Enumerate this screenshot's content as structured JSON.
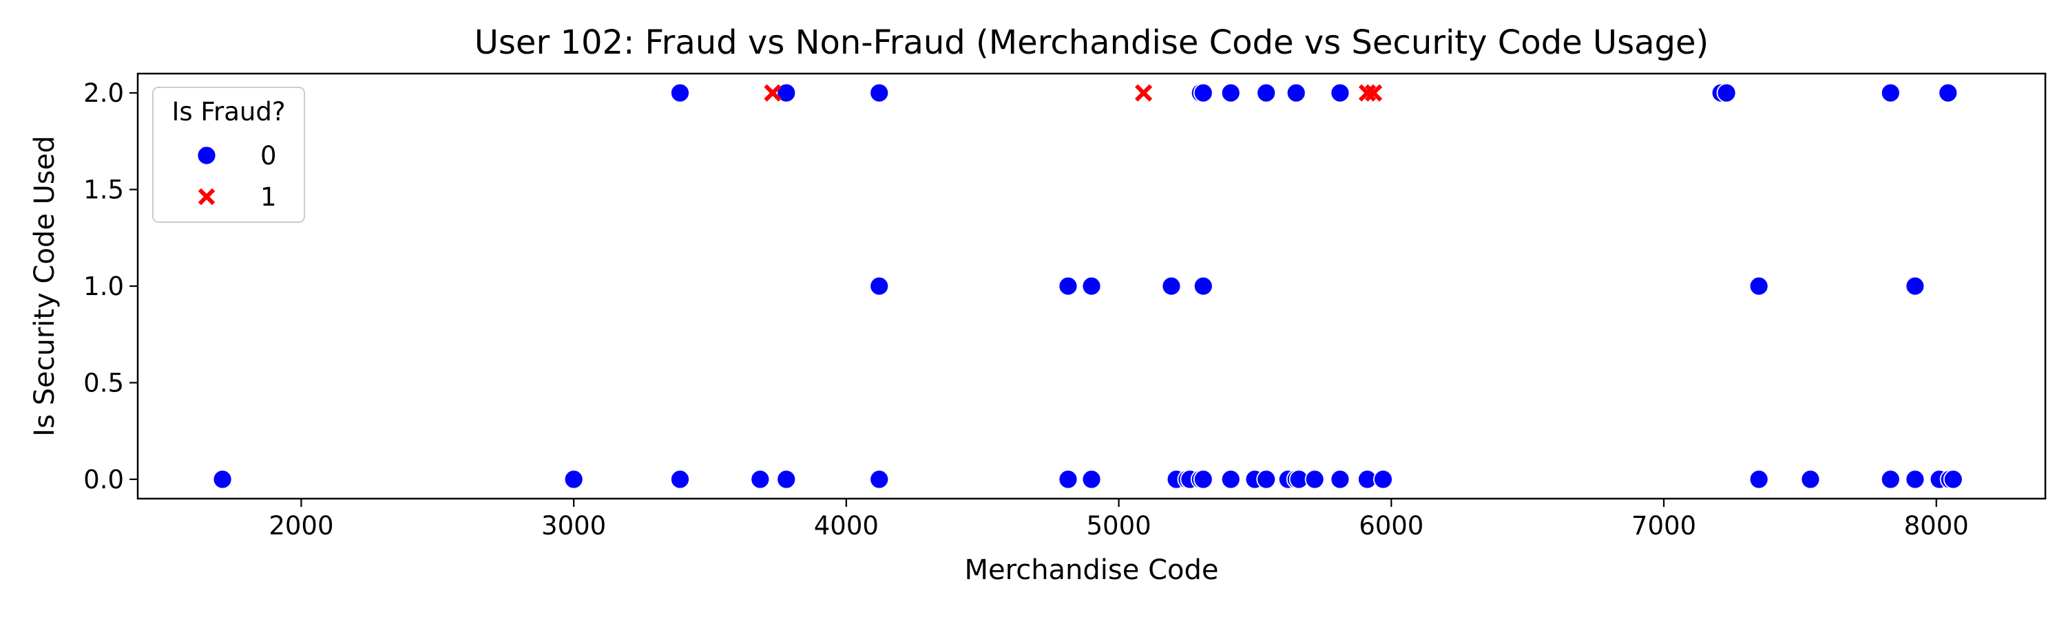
{
  "colors": {
    "non_fraud": "#0000ff",
    "fraud": "#ff0000",
    "axes": "#000000",
    "legend_border": "#cccccc",
    "background": "#ffffff"
  },
  "chart_data": {
    "type": "scatter",
    "title": "User 102: Fraud vs Non-Fraud (Merchandise Code vs Security Code Usage)",
    "xlabel": "Merchandise Code",
    "ylabel": "Is Security Code Used",
    "xlim": [
      1400,
      8400
    ],
    "ylim": [
      -0.1,
      2.1
    ],
    "xticks": [
      2000,
      3000,
      4000,
      5000,
      6000,
      7000,
      8000
    ],
    "xtick_labels": [
      "2000",
      "3000",
      "4000",
      "5000",
      "6000",
      "7000",
      "8000"
    ],
    "yticks": [
      0.0,
      0.5,
      1.0,
      1.5,
      2.0
    ],
    "ytick_labels": [
      "0.0",
      "0.5",
      "1.0",
      "1.5",
      "2.0"
    ],
    "grid": false,
    "legend": {
      "title": "Is Fraud?",
      "placement": "top-left",
      "entries": [
        {
          "label": "0",
          "marker": "circle",
          "color": "#0000ff"
        },
        {
          "label": "1",
          "marker": "x",
          "color": "#ff0000"
        }
      ]
    },
    "series": [
      {
        "name": "0",
        "marker": "circle",
        "color": "#0000ff",
        "points": [
          [
            1711,
            0
          ],
          [
            3000,
            0
          ],
          [
            3390,
            0
          ],
          [
            3684,
            0
          ],
          [
            3780,
            0
          ],
          [
            4121,
            0
          ],
          [
            4814,
            0
          ],
          [
            4900,
            0
          ],
          [
            5211,
            0
          ],
          [
            5251,
            0
          ],
          [
            5261,
            0
          ],
          [
            5300,
            0
          ],
          [
            5310,
            0
          ],
          [
            5411,
            0
          ],
          [
            5499,
            0
          ],
          [
            5541,
            0
          ],
          [
            5621,
            0
          ],
          [
            5651,
            0
          ],
          [
            5661,
            0
          ],
          [
            5719,
            0
          ],
          [
            5812,
            0
          ],
          [
            5912,
            0
          ],
          [
            5970,
            0
          ],
          [
            7349,
            0
          ],
          [
            7538,
            0
          ],
          [
            7832,
            0
          ],
          [
            7922,
            0
          ],
          [
            8011,
            0
          ],
          [
            8049,
            0
          ],
          [
            8062,
            0
          ],
          [
            4121,
            1
          ],
          [
            4814,
            1
          ],
          [
            4900,
            1
          ],
          [
            5193,
            1
          ],
          [
            5310,
            1
          ],
          [
            7349,
            1
          ],
          [
            7922,
            1
          ],
          [
            3390,
            2
          ],
          [
            3780,
            2
          ],
          [
            4121,
            2
          ],
          [
            5300,
            2
          ],
          [
            5310,
            2
          ],
          [
            5411,
            2
          ],
          [
            5541,
            2
          ],
          [
            5651,
            2
          ],
          [
            5812,
            2
          ],
          [
            7210,
            2
          ],
          [
            7230,
            2
          ],
          [
            7832,
            2
          ],
          [
            8043,
            2
          ]
        ]
      },
      {
        "name": "1",
        "marker": "x",
        "color": "#ff0000",
        "points": [
          [
            3730,
            2
          ],
          [
            5091,
            2
          ],
          [
            5912,
            2
          ],
          [
            5935,
            2
          ]
        ]
      }
    ]
  }
}
